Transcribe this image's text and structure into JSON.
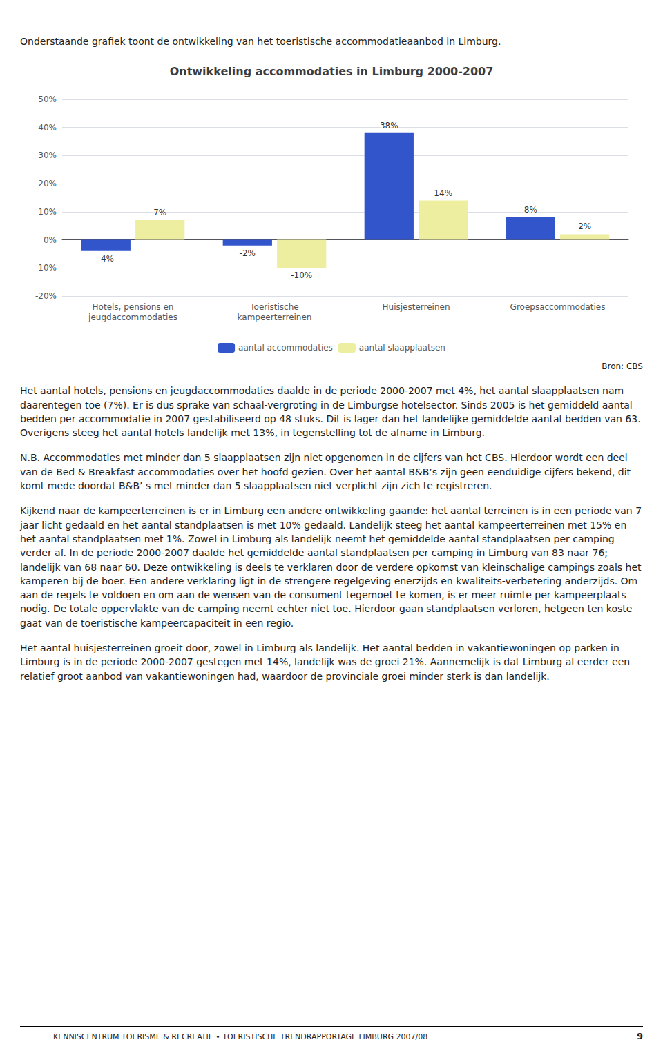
{
  "chart_data": {
    "type": "bar",
    "title": "Ontwikkeling accommodaties in Limburg 2000-2007",
    "categories": [
      "Hotels, pensions en\njeugdaccommodaties",
      "Toeristische\nkampeerterreinen",
      "Huisjesterreinen",
      "Groepsaccommodaties"
    ],
    "series": [
      {
        "name": "aantal accommodaties",
        "color": "#3355CC",
        "values": [
          -4,
          -2,
          38,
          8
        ],
        "value_labels": [
          "-4%",
          "-2%",
          "38%",
          "8%"
        ]
      },
      {
        "name": "aantal slaapplaatsen",
        "color": "#EEEEA0",
        "values": [
          7,
          -10,
          14,
          2
        ],
        "value_labels": [
          "7%",
          "-10%",
          "14%",
          "2%"
        ]
      }
    ],
    "ylim": [
      -20,
      50
    ],
    "yticks": [
      {
        "value": -20,
        "label": "-20%"
      },
      {
        "value": -10,
        "label": "-10%"
      },
      {
        "value": 0,
        "label": "0%"
      },
      {
        "value": 10,
        "label": "10%"
      },
      {
        "value": 20,
        "label": "20%"
      },
      {
        "value": 30,
        "label": "30%"
      },
      {
        "value": 40,
        "label": "40%"
      },
      {
        "value": 50,
        "label": "50%"
      }
    ],
    "grid": true,
    "legend": "bottom",
    "data_labels": true,
    "annotations": [
      "Onderstaande grafiek toont de ontwikkeling van het toeristische accommodatieaanbod in Limburg.",
      "Bron: CBS",
      "Het aantal hotels, pensions en jeugdaccommodaties daalde in de periode 2000-2007 met 4%, het aantal slaapplaatsen nam daarentegen toe (7%). Er is dus sprake van schaal-vergroting in de Limburgse hotelsector. Sinds 2005 is het gemiddeld aantal bedden per accommodatie in 2007 gestabiliseerd op 48 stuks. Dit is lager dan het landelijke gemiddelde aantal bedden van 63. Overigens steeg het aantal hotels landelijk met 13%, in tegenstelling tot de afname in Limburg.",
      "N.B. Accommodaties met minder dan 5 slaapplaatsen zijn niet opgenomen in de cijfers van het CBS. Hierdoor wordt een deel van de Bed & Breakfast accommodaties over het hoofd gezien. Over het aantal B&B’s zijn geen eenduidige cijfers bekend, dit komt mede doordat B&B’ s met minder dan 5 slaapplaatsen niet verplicht zijn zich te registreren.",
      "Kijkend naar de kampeerterreinen is er in Limburg een andere ontwikkeling gaande: het aantal terreinen is in een periode van 7 jaar licht gedaald en het aantal standplaatsen is met 10% gedaald. Landelijk steeg het aantal kampeerterreinen met 15% en het aantal standplaatsen met 1%. Zowel in Limburg als landelijk neemt het gemiddelde aantal standplaatsen per camping verder af. In de periode 2000-2007 daalde het gemiddelde aantal standplaatsen per camping in Limburg van 83 naar 76; landelijk van 68 naar 60. Deze ontwikkeling is deels te verklaren door de verdere opkomst van kleinschalige campings zoals het kamperen bij de boer. Een andere verklaring ligt in de strengere regelgeving enerzijds en kwaliteits-verbetering anderzijds. Om aan de regels te voldoen en om aan de wensen van de consument tegemoet te komen, is er meer ruimte per kampeerplaats nodig. De totale oppervlakte van de camping neemt echter niet toe. Hierdoor gaan standplaatsen verloren, hetgeen ten koste gaat van de toeristische kampeercapaciteit in een regio.",
      "Het aantal huisjesterreinen groeit door, zowel in Limburg als landelijk. Het aantal bedden in vakantiewoningen op parken in Limburg is in de periode 2000-2007 gestegen met 14%, landelijk was de groei 21%. Aannemelijk is dat Limburg al eerder een relatief groot aanbod van vakantiewoningen had, waardoor de provinciale groei minder sterk is dan landelijk.",
      "KENNISCENTRUM TOERISME & RECREATIE  •  TOERISTISCHE TRENDRAPPORTAGE LIMBURG 2007/08",
      "9"
    ]
  }
}
